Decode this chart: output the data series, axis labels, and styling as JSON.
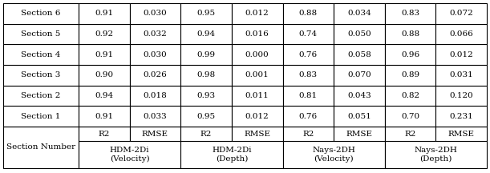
{
  "group_labels": [
    "HDM-2Di\n(Velocity)",
    "HDM-2Di\n(Depth)",
    "Nays-2DH\n(Velocity)",
    "Nays-2DH\n(Depth)"
  ],
  "sub_headers": [
    "R2",
    "RMSE",
    "R2",
    "RMSE",
    "R2",
    "RMSE",
    "R2",
    "RMSE"
  ],
  "row_label_header": "Section Number",
  "data": [
    [
      "Section 1",
      "0.91",
      "0.033",
      "0.95",
      "0.012",
      "0.76",
      "0.051",
      "0.70",
      "0.231"
    ],
    [
      "Section 2",
      "0.94",
      "0.018",
      "0.93",
      "0.011",
      "0.81",
      "0.043",
      "0.82",
      "0.120"
    ],
    [
      "Section 3",
      "0.90",
      "0.026",
      "0.98",
      "0.001",
      "0.83",
      "0.070",
      "0.89",
      "0.031"
    ],
    [
      "Section 4",
      "0.91",
      "0.030",
      "0.99",
      "0.000",
      "0.76",
      "0.058",
      "0.96",
      "0.012"
    ],
    [
      "Section 5",
      "0.92",
      "0.032",
      "0.94",
      "0.016",
      "0.74",
      "0.050",
      "0.88",
      "0.066"
    ],
    [
      "Section 6",
      "0.91",
      "0.030",
      "0.95",
      "0.012",
      "0.88",
      "0.034",
      "0.83",
      "0.072"
    ]
  ],
  "background_color": "#ffffff",
  "border_color": "#000000",
  "text_color": "#000000",
  "font_size": 7.5,
  "header_font_size": 7.5
}
